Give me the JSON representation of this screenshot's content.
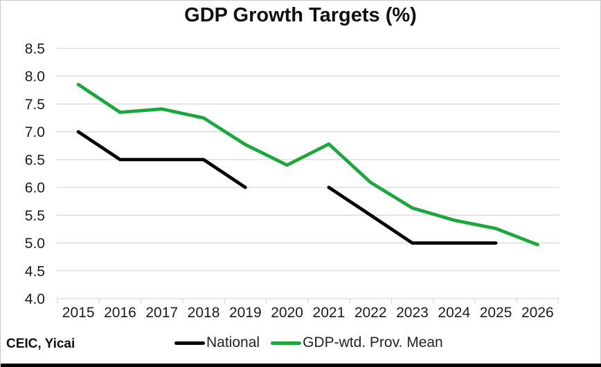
{
  "title": "GDP Growth Targets (%)",
  "source": "CEIC, Yicai",
  "colors": {
    "national_line": "#000000",
    "provincial_line": "#1aa83c",
    "gridline": "#d9d9d9",
    "axis_text": "#1a1a1a",
    "bottom_bar": "#000000"
  },
  "legend": [
    {
      "label": "National",
      "color": "#000000"
    },
    {
      "label": "GDP-wtd. Prov. Mean",
      "color": "#1aa83c"
    }
  ],
  "chart_data": {
    "type": "line",
    "title": "GDP Growth Targets (%)",
    "xlabel": "",
    "ylabel": "",
    "categories": [
      "2015",
      "2016",
      "2017",
      "2018",
      "2019",
      "2020",
      "2021",
      "2022",
      "2023",
      "2024",
      "2025",
      "2026"
    ],
    "series": [
      {
        "name": "National",
        "color": "#000000",
        "values": [
          7.0,
          6.5,
          6.5,
          6.5,
          6.0,
          null,
          6.0,
          5.5,
          5.0,
          5.0,
          5.0,
          null
        ]
      },
      {
        "name": "GDP-wtd. Prov. Mean",
        "color": "#1aa83c",
        "values": [
          7.85,
          7.35,
          7.41,
          7.25,
          6.77,
          6.4,
          6.78,
          6.09,
          5.63,
          5.41,
          5.26,
          4.97
        ]
      }
    ],
    "ylim": [
      4.0,
      8.5
    ],
    "ytick_step": 0.5,
    "ytick_labels": [
      "4.0",
      "4.5",
      "5.0",
      "5.5",
      "6.0",
      "6.5",
      "7.0",
      "7.5",
      "8.0",
      "8.5"
    ],
    "grid": true,
    "legend_position": "bottom"
  }
}
